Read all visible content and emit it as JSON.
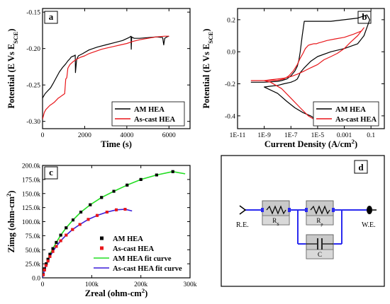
{
  "chart_data": [
    {
      "panel": "a",
      "type": "line",
      "xlabel": "Time (s)",
      "ylabel": "Potential (E Vs E",
      "ylabel_sub": "SCE",
      "ylabel_tail": ")",
      "xlim": [
        0,
        7000
      ],
      "ylim": [
        -0.31,
        -0.145
      ],
      "xticks": [
        0,
        2000,
        4000,
        6000
      ],
      "xtick_labels": [
        "0",
        "2000",
        "4000",
        "6000"
      ],
      "yticks": [
        -0.3,
        -0.25,
        -0.2,
        -0.15
      ],
      "ytick_labels": [
        "-0.30",
        "-0.25",
        "-0.20",
        "-0.15"
      ],
      "legend_position": "bottom-right",
      "series": [
        {
          "name": "AM HEA",
          "color": "#000000",
          "x": [
            0,
            120,
            250,
            380,
            500,
            650,
            800,
            950,
            1100,
            1200,
            1300,
            1350,
            1400,
            1500,
            1550,
            1560,
            1620,
            1700,
            1900,
            2200,
            2600,
            3000,
            3400,
            3800,
            4100,
            4200,
            4210,
            4230,
            4280,
            4350,
            4600,
            5000,
            5400,
            5700,
            5750,
            5800,
            5900,
            6000
          ],
          "y": [
            -0.268,
            -0.262,
            -0.258,
            -0.254,
            -0.248,
            -0.24,
            -0.232,
            -0.226,
            -0.221,
            -0.217,
            -0.214,
            -0.212,
            -0.211,
            -0.21,
            -0.209,
            -0.233,
            -0.215,
            -0.21,
            -0.207,
            -0.202,
            -0.198,
            -0.195,
            -0.192,
            -0.189,
            -0.185,
            -0.183,
            -0.201,
            -0.184,
            -0.185,
            -0.186,
            -0.186,
            -0.185,
            -0.184,
            -0.185,
            -0.195,
            -0.186,
            -0.184,
            -0.183
          ]
        },
        {
          "name": "As-cast HEA",
          "color": "#e8171b",
          "x": [
            0,
            80,
            150,
            250,
            350,
            450,
            550,
            650,
            750,
            850,
            950,
            1050,
            1100,
            1150,
            1200,
            1300,
            1450,
            1600,
            1800,
            2000,
            2200,
            2500,
            2800,
            3100,
            3400,
            3700,
            4000,
            4300,
            4600,
            5000,
            5400,
            5800,
            6000
          ],
          "y": [
            -0.297,
            -0.288,
            -0.284,
            -0.281,
            -0.278,
            -0.276,
            -0.274,
            -0.271,
            -0.268,
            -0.266,
            -0.264,
            -0.262,
            -0.242,
            -0.24,
            -0.227,
            -0.222,
            -0.218,
            -0.215,
            -0.212,
            -0.21,
            -0.207,
            -0.204,
            -0.201,
            -0.199,
            -0.197,
            -0.195,
            -0.193,
            -0.19,
            -0.188,
            -0.186,
            -0.184,
            -0.183,
            -0.183
          ]
        }
      ]
    },
    {
      "panel": "b",
      "type": "line",
      "xlabel": "Current Density (A/cm",
      "xlabel_sup": "2",
      "xlabel_tail": ")",
      "ylabel": "Potential (E Vs E",
      "ylabel_sub": "SCE",
      "ylabel_tail": ")",
      "x_scale": "log",
      "xlim": [
        1e-11,
        1
      ],
      "ylim": [
        -0.48,
        0.27
      ],
      "xticks": [
        1e-11,
        1e-09,
        1e-07,
        1e-05,
        0.001,
        0.1
      ],
      "xtick_labels": [
        "1E-11",
        "1E-9",
        "1E-7",
        "1E-5",
        "0.001",
        "0.1"
      ],
      "yticks": [
        -0.4,
        -0.2,
        0.0,
        0.2
      ],
      "ytick_labels": [
        "-0.4",
        "-0.2",
        "0.0",
        "0.2"
      ],
      "legend_position": "bottom-right",
      "series": [
        {
          "name": "AM HEA",
          "color": "#000000",
          "x": [
            1e-10,
            1e-09,
            1e-08,
            2e-08,
            5e-08,
            1e-07,
            2e-07,
            3e-07,
            4e-07,
            5e-07,
            7e-07,
            1e-06,
            2e-06,
            3e-06,
            4e-06,
            6e-06,
            1e-05,
            3e-05,
            0.0001,
            0.001,
            0.01,
            0.05,
            0.08,
            0.03,
            0.01,
            0.001,
            0.0001,
            1e-05,
            3e-06,
            1e-06,
            5e-07,
            4e-07,
            3e-07,
            2e-07,
            1e-07,
            3e-08,
            1e-08,
            3e-09,
            1e-09,
            1e-08,
            5e-08,
            2e-07,
            8e-07,
            3e-06,
            7e-06
          ],
          "y": [
            -0.19,
            -0.19,
            -0.185,
            -0.18,
            -0.17,
            -0.15,
            -0.12,
            -0.09,
            -0.05,
            0.0,
            0.1,
            0.19,
            0.19,
            0.19,
            0.19,
            0.19,
            0.19,
            0.19,
            0.19,
            0.2,
            0.21,
            0.23,
            0.2,
            0.1,
            0.05,
            0.02,
            0.0,
            -0.03,
            -0.06,
            -0.1,
            -0.13,
            -0.15,
            -0.17,
            -0.18,
            -0.19,
            -0.2,
            -0.21,
            -0.215,
            -0.22,
            -0.26,
            -0.31,
            -0.35,
            -0.38,
            -0.4,
            -0.42
          ]
        },
        {
          "name": "As-cast HEA",
          "color": "#e8171b",
          "x": [
            1e-10,
            1e-09,
            1e-08,
            3e-08,
            7e-08,
            1.5e-07,
            3e-07,
            5e-07,
            8e-07,
            1.2e-06,
            2e-06,
            3e-06,
            5e-06,
            8e-06,
            1.2e-05,
            2e-05,
            5e-05,
            0.0002,
            0.001,
            0.005,
            0.02,
            0.03,
            0.01,
            0.003,
            0.001,
            0.0003,
            0.0001,
            3e-05,
            1e-05,
            3e-06,
            1e-06,
            3e-07,
            1e-07,
            3e-08,
            1e-08,
            3e-09,
            1e-09,
            3e-09,
            2e-08,
            1e-07,
            5e-07,
            2e-06,
            5e-06
          ],
          "y": [
            -0.18,
            -0.18,
            -0.178,
            -0.17,
            -0.15,
            -0.12,
            -0.08,
            -0.04,
            -0.01,
            0.02,
            0.04,
            0.045,
            0.05,
            0.05,
            0.055,
            0.06,
            0.07,
            0.08,
            0.09,
            0.11,
            0.13,
            0.15,
            0.1,
            0.06,
            0.02,
            -0.01,
            -0.03,
            -0.05,
            -0.08,
            -0.1,
            -0.12,
            -0.14,
            -0.155,
            -0.165,
            -0.17,
            -0.175,
            -0.18,
            -0.19,
            -0.23,
            -0.29,
            -0.35,
            -0.4,
            -0.42
          ]
        }
      ]
    },
    {
      "panel": "c",
      "type": "scatter",
      "xlabel": "Zreal (ohm-cm",
      "xlabel_sup": "2",
      "xlabel_tail": ")",
      "ylabel": "Zimg (ohm-cm",
      "ylabel_sup": "2",
      "ylabel_tail": ")",
      "xlim": [
        0,
        300000
      ],
      "ylim": [
        0,
        200000
      ],
      "xticks": [
        0,
        100000,
        200000,
        300000
      ],
      "xtick_labels": [
        "0",
        "100k",
        "200k",
        "300k"
      ],
      "yticks": [
        0,
        25000,
        50000,
        75000,
        100000,
        125000,
        150000,
        175000,
        200000
      ],
      "ytick_labels": [
        "0.0",
        "25.0k",
        "50.0k",
        "75.0k",
        "100.0k",
        "125.0k",
        "150.0k",
        "175.0k",
        "200.0k"
      ],
      "legend_position": "bottom-right",
      "series": [
        {
          "name": "AM HEA",
          "color": "#000000",
          "marker": "square",
          "x": [
            1500,
            4000,
            7500,
            11000,
            15000,
            21000,
            28000,
            37000,
            48000,
            62000,
            78000,
            97000,
            120000,
            145000,
            172000,
            200000,
            232000,
            265000
          ],
          "y": [
            6000,
            16000,
            25000,
            33000,
            42000,
            52000,
            63000,
            76000,
            89000,
            103000,
            117000,
            130000,
            143000,
            154000,
            165000,
            175000,
            183000,
            189000
          ]
        },
        {
          "name": "As-cast HEA",
          "color": "#e8171b",
          "marker": "square",
          "x": [
            1500,
            4000,
            7000,
            11000,
            15000,
            21000,
            28000,
            37000,
            48000,
            61000,
            76000,
            93000,
            111000,
            131000,
            150000,
            168000
          ],
          "y": [
            5500,
            14000,
            22000,
            30000,
            38000,
            47000,
            56000,
            66000,
            76000,
            86000,
            95000,
            104000,
            111000,
            117000,
            121000,
            122000
          ]
        },
        {
          "name": "AM HEA fit curve",
          "color": "#22dd22",
          "marker": "line",
          "x": [
            0,
            1500,
            4000,
            7500,
            11000,
            15000,
            21000,
            28000,
            37000,
            48000,
            62000,
            78000,
            97000,
            120000,
            145000,
            172000,
            200000,
            232000,
            265000,
            290000
          ],
          "y": [
            0,
            6000,
            16000,
            25000,
            33000,
            42000,
            52000,
            63000,
            76000,
            89000,
            103000,
            117000,
            130000,
            143000,
            154000,
            165000,
            175000,
            183000,
            189000,
            185000
          ]
        },
        {
          "name": "As-cast HEA fit curve",
          "color": "#3a1cd8",
          "marker": "line",
          "x": [
            0,
            1500,
            4000,
            7000,
            11000,
            15000,
            21000,
            28000,
            37000,
            48000,
            61000,
            76000,
            93000,
            111000,
            131000,
            150000,
            168000,
            182000
          ],
          "y": [
            0,
            5500,
            14000,
            22000,
            30000,
            38000,
            47000,
            56000,
            66000,
            76000,
            86000,
            95000,
            104000,
            111000,
            117000,
            121000,
            122000,
            119000
          ]
        }
      ]
    },
    {
      "panel": "d",
      "type": "diagram",
      "labels": {
        "re": "R.E.",
        "we": "W.E.",
        "rs_main": "R",
        "rs_sub": "S",
        "rp_main": "R",
        "rp_sub": "p",
        "c": "C"
      },
      "wire_color": "#2a2aef"
    }
  ]
}
